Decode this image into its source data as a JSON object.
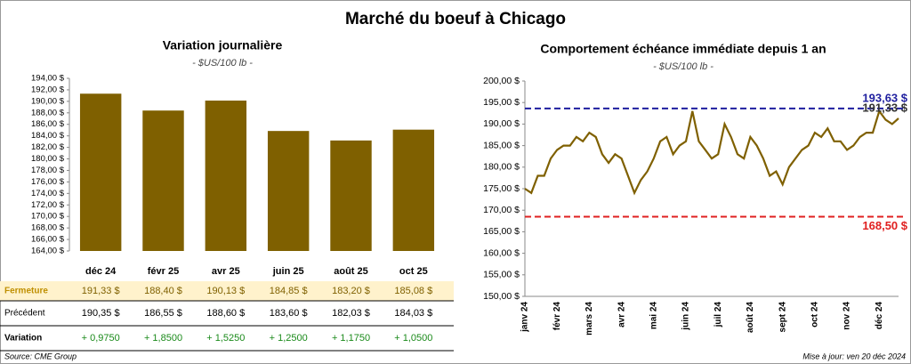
{
  "title": "Marché du boeuf à Chicago",
  "chart_data": [
    {
      "type": "bar",
      "title": "Variation journalière",
      "subtitle": "- $US/100 lb -",
      "categories": [
        "déc 24",
        "févr 25",
        "avr 25",
        "juin 25",
        "août 25",
        "oct 25"
      ],
      "values": [
        191.33,
        188.4,
        190.13,
        184.85,
        183.2,
        185.08
      ],
      "color": "#7f6000",
      "ylim": [
        164,
        194
      ],
      "yticks": [
        {
          "value": 164,
          "label": "164,00 $"
        },
        {
          "value": 166,
          "label": "166,00 $"
        },
        {
          "value": 168,
          "label": "168,00 $"
        },
        {
          "value": 170,
          "label": "170,00 $"
        },
        {
          "value": 172,
          "label": "172,00 $"
        },
        {
          "value": 174,
          "label": "174,00 $"
        },
        {
          "value": 176,
          "label": "176,00 $"
        },
        {
          "value": 178,
          "label": "178,00 $"
        },
        {
          "value": 180,
          "label": "180,00 $"
        },
        {
          "value": 182,
          "label": "182,00 $"
        },
        {
          "value": 184,
          "label": "184,00 $"
        },
        {
          "value": 186,
          "label": "186,00 $"
        },
        {
          "value": 188,
          "label": "188,00 $"
        },
        {
          "value": 190,
          "label": "190,00 $"
        },
        {
          "value": 192,
          "label": "192,00 $"
        },
        {
          "value": 194,
          "label": "194,00 $"
        }
      ],
      "grid": false
    },
    {
      "type": "line",
      "title": "Comportement échéance immédiate depuis 1 an",
      "subtitle": "- $US/100 lb -",
      "categories": [
        "janv 24",
        null,
        null,
        null,
        null,
        "févr 24",
        null,
        null,
        null,
        null,
        "mars 24",
        null,
        null,
        null,
        null,
        "avr 24",
        null,
        null,
        null,
        null,
        "mai 24",
        null,
        null,
        null,
        null,
        "juin 24",
        null,
        null,
        null,
        null,
        "juil 24",
        null,
        null,
        null,
        null,
        "août 24",
        null,
        null,
        null,
        null,
        "sept 24",
        null,
        null,
        null,
        null,
        "oct 24",
        null,
        null,
        null,
        null,
        "nov 24",
        null,
        null,
        null,
        null,
        "déc 24",
        null,
        null,
        null
      ],
      "series": [
        {
          "name": "Fermeture",
          "color": "#7f6000",
          "values": [
            175,
            174,
            178,
            178,
            182,
            184,
            185,
            185,
            187,
            186,
            188,
            187,
            183,
            181,
            183,
            182,
            178,
            174,
            177,
            179,
            182,
            186,
            187,
            183,
            185,
            186,
            193,
            186,
            184,
            182,
            183,
            190,
            187,
            183,
            182,
            187,
            185,
            182,
            178,
            179,
            176,
            180,
            182,
            184,
            185,
            188,
            187,
            189,
            186,
            186,
            184,
            185,
            187,
            188,
            188,
            193,
            191,
            190,
            191.33
          ]
        }
      ],
      "ylim": [
        150,
        200
      ],
      "yticks": [
        {
          "value": 150,
          "label": "150,00 $"
        },
        {
          "value": 155,
          "label": "155,00 $"
        },
        {
          "value": 160,
          "label": "160,00 $"
        },
        {
          "value": 165,
          "label": "165,00 $"
        },
        {
          "value": 170,
          "label": "170,00 $"
        },
        {
          "value": 175,
          "label": "175,00 $"
        },
        {
          "value": 180,
          "label": "180,00 $"
        },
        {
          "value": 185,
          "label": "185,00 $"
        },
        {
          "value": 190,
          "label": "190,00 $"
        },
        {
          "value": 195,
          "label": "195,00 $"
        },
        {
          "value": 200,
          "label": "200,00 $"
        }
      ],
      "reference_lines": [
        {
          "value": 193.63,
          "label": "193,63 $",
          "color": "#1f1f9f",
          "dashed": true
        },
        {
          "value": 191.33,
          "label": "191,33 $",
          "color": "#333333",
          "dashed": false
        },
        {
          "value": 168.5,
          "label": "168,50 $",
          "color": "#e02020",
          "dashed": true
        }
      ]
    }
  ],
  "table": {
    "rows": [
      {
        "label": "Fermeture",
        "cells": [
          "191,33 $",
          "188,40 $",
          "190,13 $",
          "184,85 $",
          "183,20 $",
          "185,08 $"
        ]
      },
      {
        "label": "Précédent",
        "cells": [
          "190,35 $",
          "186,55 $",
          "188,60 $",
          "183,60 $",
          "182,03 $",
          "184,03 $"
        ]
      },
      {
        "label": "Variation",
        "cells": [
          "+ 0,9750",
          "+ 1,8500",
          "+ 1,5250",
          "+ 1,2500",
          "+ 1,1750",
          "+ 1,0500"
        ]
      }
    ]
  },
  "source": "Source: CME Group",
  "updated": "Mise à jour: ven 20 déc 2024"
}
